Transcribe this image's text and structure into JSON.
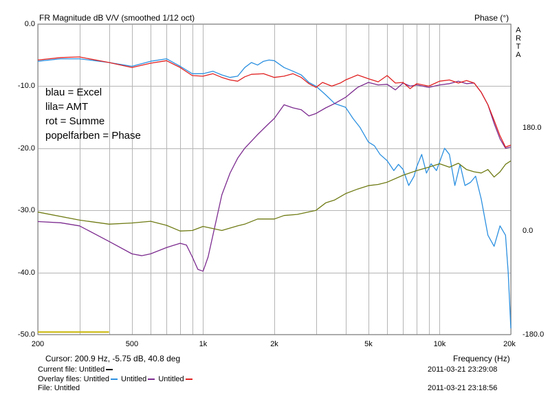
{
  "header": {
    "title": "FR Magnitude dB V/V (smoothed 1/12 oct)",
    "right_label": "Phase (°)",
    "side_label": [
      "A",
      "R",
      "T",
      "A"
    ]
  },
  "chart_data": {
    "type": "line",
    "title": "FR Magnitude dB V/V (smoothed 1/12 oct)",
    "xlabel": "Frequency (Hz)",
    "ylabel": "",
    "y2label": "Phase (°)",
    "xscale": "log",
    "xlim": [
      200,
      20000
    ],
    "ylim": [
      -50,
      0
    ],
    "y2lim": [
      -180,
      360
    ],
    "grid": true,
    "x_ticks": [
      200,
      500,
      1000,
      2000,
      5000,
      10000,
      20000
    ],
    "x_tick_labels": [
      "200",
      "500",
      "1k",
      "2k",
      "5k",
      "10k",
      "20k"
    ],
    "y_ticks": [
      0,
      -10,
      -20,
      -30,
      -40,
      -50
    ],
    "y_tick_labels": [
      "0.0",
      "-10.0",
      "-20.0",
      "-30.0",
      "-40.0",
      "-50.0"
    ],
    "y2_ticks": [
      180,
      0,
      -180
    ],
    "y2_tick_labels": [
      "180.0",
      "0.0",
      "-180.0"
    ],
    "annotations": [
      "blau = Excel",
      "lila= AMT",
      "rot = Summe",
      "popelfarben = Phase"
    ],
    "series": [
      {
        "color": "#2a8fe0",
        "axis": "left",
        "points": [
          [
            200,
            -6.0
          ],
          [
            250,
            -5.6
          ],
          [
            300,
            -5.6
          ],
          [
            400,
            -6.2
          ],
          [
            500,
            -6.8
          ],
          [
            600,
            -6.0
          ],
          [
            700,
            -5.6
          ],
          [
            800,
            -6.8
          ],
          [
            900,
            -8.0
          ],
          [
            1000,
            -8.0
          ],
          [
            1100,
            -7.6
          ],
          [
            1200,
            -8.2
          ],
          [
            1300,
            -8.6
          ],
          [
            1400,
            -8.4
          ],
          [
            1500,
            -7.0
          ],
          [
            1600,
            -6.2
          ],
          [
            1700,
            -6.6
          ],
          [
            1800,
            -6.0
          ],
          [
            1900,
            -5.8
          ],
          [
            2000,
            -5.9
          ],
          [
            2200,
            -7.0
          ],
          [
            2400,
            -7.6
          ],
          [
            2600,
            -8.2
          ],
          [
            2800,
            -9.4
          ],
          [
            3000,
            -10.0
          ],
          [
            3300,
            -11.4
          ],
          [
            3600,
            -12.8
          ],
          [
            4000,
            -13.4
          ],
          [
            4300,
            -15.2
          ],
          [
            4600,
            -16.6
          ],
          [
            5000,
            -19.0
          ],
          [
            5300,
            -19.6
          ],
          [
            5600,
            -21.0
          ],
          [
            6000,
            -22.0
          ],
          [
            6400,
            -23.6
          ],
          [
            6700,
            -22.6
          ],
          [
            7000,
            -23.4
          ],
          [
            7400,
            -26.0
          ],
          [
            7800,
            -24.5
          ],
          [
            8000,
            -23.0
          ],
          [
            8400,
            -21.0
          ],
          [
            8800,
            -24.0
          ],
          [
            9200,
            -22.5
          ],
          [
            9700,
            -23.6
          ],
          [
            10500,
            -20.0
          ],
          [
            11000,
            -21.0
          ],
          [
            11600,
            -26.0
          ],
          [
            12200,
            -22.6
          ],
          [
            12800,
            -26.0
          ],
          [
            13500,
            -25.5
          ],
          [
            14200,
            -24.5
          ],
          [
            15000,
            -28.2
          ],
          [
            16000,
            -34.0
          ],
          [
            17000,
            -35.8
          ],
          [
            18000,
            -32.5
          ],
          [
            19000,
            -34.0
          ],
          [
            19500,
            -40.0
          ],
          [
            20000,
            -49.0
          ]
        ]
      },
      {
        "color": "#7b2a8e",
        "axis": "left",
        "points": [
          [
            200,
            -31.8
          ],
          [
            250,
            -32.0
          ],
          [
            300,
            -32.5
          ],
          [
            400,
            -35.0
          ],
          [
            500,
            -37.0
          ],
          [
            550,
            -37.3
          ],
          [
            600,
            -37.0
          ],
          [
            700,
            -36.0
          ],
          [
            800,
            -35.3
          ],
          [
            850,
            -35.6
          ],
          [
            900,
            -37.5
          ],
          [
            950,
            -39.5
          ],
          [
            1000,
            -39.8
          ],
          [
            1050,
            -37.5
          ],
          [
            1100,
            -34.0
          ],
          [
            1200,
            -27.5
          ],
          [
            1300,
            -24.0
          ],
          [
            1400,
            -21.6
          ],
          [
            1500,
            -20.0
          ],
          [
            1700,
            -17.8
          ],
          [
            1900,
            -16.0
          ],
          [
            2000,
            -15.2
          ],
          [
            2200,
            -13.0
          ],
          [
            2400,
            -13.5
          ],
          [
            2600,
            -13.8
          ],
          [
            2800,
            -14.8
          ],
          [
            3000,
            -14.4
          ],
          [
            3300,
            -13.5
          ],
          [
            3600,
            -12.8
          ],
          [
            4000,
            -11.8
          ],
          [
            4500,
            -10.2
          ],
          [
            5000,
            -9.4
          ],
          [
            5500,
            -9.8
          ],
          [
            6000,
            -9.7
          ],
          [
            6500,
            -10.6
          ],
          [
            7000,
            -9.5
          ],
          [
            7500,
            -10.0
          ],
          [
            8000,
            -9.8
          ],
          [
            9000,
            -10.2
          ],
          [
            10000,
            -9.8
          ],
          [
            11000,
            -9.6
          ],
          [
            12000,
            -9.2
          ],
          [
            13000,
            -9.6
          ],
          [
            14000,
            -9.5
          ],
          [
            15000,
            -11.0
          ],
          [
            16000,
            -13.0
          ],
          [
            17000,
            -16.0
          ],
          [
            18000,
            -18.5
          ],
          [
            19000,
            -20.0
          ],
          [
            20000,
            -19.8
          ]
        ]
      },
      {
        "color": "#e02020",
        "axis": "left",
        "points": [
          [
            200,
            -5.8
          ],
          [
            250,
            -5.4
          ],
          [
            300,
            -5.3
          ],
          [
            400,
            -6.2
          ],
          [
            500,
            -7.0
          ],
          [
            600,
            -6.3
          ],
          [
            700,
            -5.9
          ],
          [
            800,
            -7.0
          ],
          [
            900,
            -8.3
          ],
          [
            1000,
            -8.4
          ],
          [
            1100,
            -8.0
          ],
          [
            1200,
            -8.6
          ],
          [
            1300,
            -9.0
          ],
          [
            1400,
            -9.2
          ],
          [
            1500,
            -8.5
          ],
          [
            1600,
            -8.1
          ],
          [
            1800,
            -8.0
          ],
          [
            2000,
            -8.6
          ],
          [
            2200,
            -8.4
          ],
          [
            2400,
            -8.0
          ],
          [
            2600,
            -8.6
          ],
          [
            2800,
            -9.6
          ],
          [
            3000,
            -10.2
          ],
          [
            3200,
            -9.4
          ],
          [
            3500,
            -10.0
          ],
          [
            3800,
            -9.5
          ],
          [
            4000,
            -9.0
          ],
          [
            4500,
            -8.2
          ],
          [
            5000,
            -8.8
          ],
          [
            5500,
            -9.3
          ],
          [
            6000,
            -8.3
          ],
          [
            6500,
            -9.5
          ],
          [
            7000,
            -9.4
          ],
          [
            7500,
            -10.4
          ],
          [
            8000,
            -9.6
          ],
          [
            9000,
            -10.0
          ],
          [
            10000,
            -9.2
          ],
          [
            11000,
            -9.0
          ],
          [
            12000,
            -9.5
          ],
          [
            13000,
            -9.1
          ],
          [
            14000,
            -9.5
          ],
          [
            15000,
            -11.0
          ],
          [
            16000,
            -13.0
          ],
          [
            17000,
            -15.5
          ],
          [
            18000,
            -18.0
          ],
          [
            19000,
            -19.8
          ],
          [
            20000,
            -19.5
          ]
        ]
      },
      {
        "color": "#6e7a12",
        "axis": "right",
        "points": [
          [
            200,
            33
          ],
          [
            300,
            19
          ],
          [
            400,
            12
          ],
          [
            500,
            14
          ],
          [
            600,
            17
          ],
          [
            700,
            10
          ],
          [
            800,
            0
          ],
          [
            900,
            1
          ],
          [
            1000,
            8
          ],
          [
            1200,
            1
          ],
          [
            1400,
            9
          ],
          [
            1500,
            12
          ],
          [
            1700,
            21
          ],
          [
            2000,
            21
          ],
          [
            2200,
            27
          ],
          [
            2500,
            29
          ],
          [
            3000,
            36
          ],
          [
            3300,
            49
          ],
          [
            3600,
            54
          ],
          [
            4000,
            65
          ],
          [
            4500,
            73
          ],
          [
            5000,
            79
          ],
          [
            5500,
            81
          ],
          [
            6000,
            85
          ],
          [
            7000,
            97
          ],
          [
            8000,
            105
          ],
          [
            9000,
            111
          ],
          [
            10000,
            117
          ],
          [
            11000,
            111
          ],
          [
            12000,
            118
          ],
          [
            13000,
            107
          ],
          [
            14000,
            103
          ],
          [
            15000,
            101
          ],
          [
            16000,
            107
          ],
          [
            17000,
            94
          ],
          [
            18000,
            103
          ],
          [
            19000,
            116
          ],
          [
            20000,
            122
          ]
        ]
      },
      {
        "color": "#c8b400",
        "axis": "left",
        "points": [
          [
            200,
            -49.6
          ],
          [
            400,
            -49.6
          ]
        ]
      }
    ]
  },
  "footer": {
    "cursor": "Cursor: 200.9 Hz, -5.75 dB, 40.8 deg",
    "frequency_label": "Frequency (Hz)",
    "current_file_label": "Current file: Untitled",
    "current_file_color": "#000000",
    "datetime": "2011-03-21  23:29:08",
    "overlay_label": "Overlay files:",
    "overlays": [
      {
        "name": "Untitled",
        "color": "#2a8fe0"
      },
      {
        "name": "Untitled",
        "color": "#7b2a8e"
      },
      {
        "name": "Untitled",
        "color": "#e02020"
      }
    ],
    "file_line": "File: Untitled",
    "datetime2": "2011-03-21  23:18:56"
  }
}
